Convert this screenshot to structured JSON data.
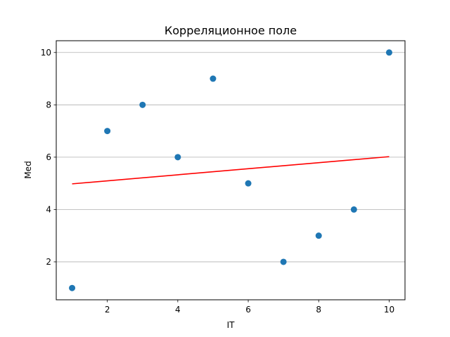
{
  "chart_data": {
    "type": "scatter",
    "title": "Корреляционное поле",
    "xlabel": "IT",
    "ylabel": "Med",
    "xlim": [
      0.55,
      10.45
    ],
    "ylim": [
      0.55,
      10.45
    ],
    "xticks": [
      2,
      4,
      6,
      8,
      10
    ],
    "yticks": [
      2,
      4,
      6,
      8,
      10
    ],
    "grid": "horizontal",
    "series": [
      {
        "kind": "points",
        "color": "#1f77b4",
        "x": [
          1,
          2,
          3,
          4,
          5,
          6,
          7,
          8,
          9,
          10
        ],
        "y": [
          1,
          7,
          8,
          6,
          9,
          5,
          2,
          3,
          4,
          10
        ]
      },
      {
        "kind": "trend-line",
        "color": "#ff0000",
        "x": [
          1,
          10
        ],
        "y": [
          4.98,
          6.02
        ]
      }
    ]
  }
}
